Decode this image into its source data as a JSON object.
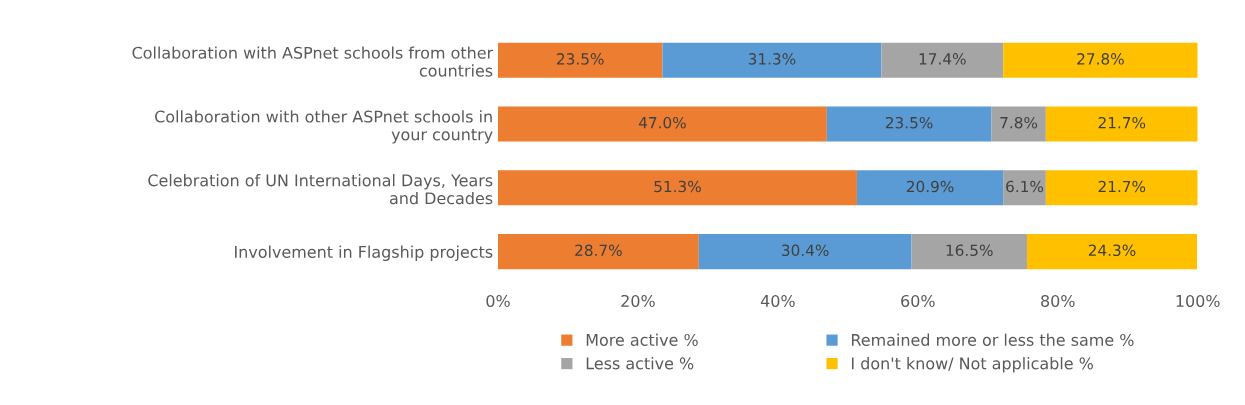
{
  "chart_data": {
    "type": "bar",
    "orientation": "horizontal",
    "stacked": true,
    "categories": [
      "Collaboration with ASPnet schools from other\ncountries",
      "Collaboration with other ASPnet schools in\nyour country",
      "Celebration of UN International Days, Years\nand Decades",
      "Involvement in Flagship projects"
    ],
    "series": [
      {
        "name": "More active %",
        "color": "#ed7d31",
        "values": [
          23.5,
          47.0,
          51.3,
          28.7
        ],
        "value_labels": [
          "23.5%",
          "47.0%",
          "51.3%",
          "28.7%"
        ]
      },
      {
        "name": "Remained more or less the same %",
        "color": "#5b9bd5",
        "values": [
          31.3,
          23.5,
          20.9,
          30.4
        ],
        "value_labels": [
          "31.3%",
          "23.5%",
          "20.9%",
          "30.4%"
        ]
      },
      {
        "name": "Less active %",
        "color": "#a5a5a5",
        "values": [
          17.4,
          7.8,
          6.1,
          16.5
        ],
        "value_labels": [
          "17.4%",
          "7.8%",
          "6.1%",
          "16.5%"
        ]
      },
      {
        "name": "I don't know/ Not applicable %",
        "color": "#ffc000",
        "values": [
          27.8,
          21.7,
          21.7,
          24.3
        ],
        "value_labels": [
          "27.8%",
          "21.7%",
          "21.7%",
          "24.3%"
        ]
      }
    ],
    "xlim": [
      0,
      100
    ],
    "xticks": [
      {
        "value": 0,
        "label": "0%"
      },
      {
        "value": 20,
        "label": "20%"
      },
      {
        "value": 40,
        "label": "40%"
      },
      {
        "value": 60,
        "label": "60%"
      },
      {
        "value": 80,
        "label": "80%"
      },
      {
        "value": 100,
        "label": "100%"
      }
    ],
    "grid": false,
    "legend": "bottom"
  }
}
